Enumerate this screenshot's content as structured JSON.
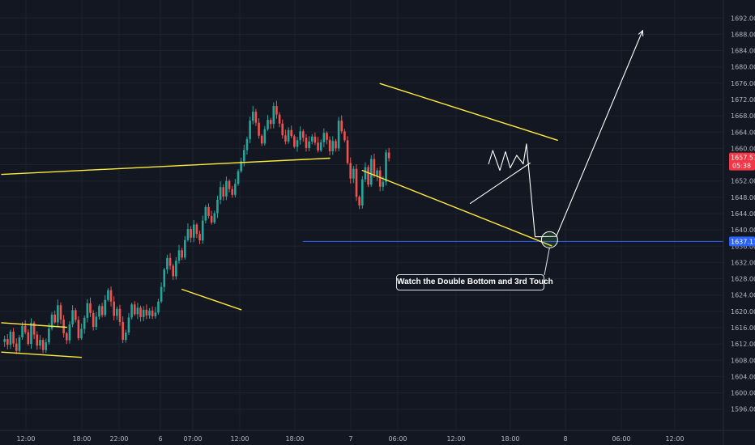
{
  "chart_data": {
    "type": "candlestick",
    "ylim": [
      1593,
      1694
    ],
    "y_ticks": [
      "1692.000",
      "1688.000",
      "1684.000",
      "1680.000",
      "1676.000",
      "1672.000",
      "1668.000",
      "1664.000",
      "1660.000",
      "1656.000",
      "1652.000",
      "1648.000",
      "1644.000",
      "1640.000",
      "1636.000",
      "1632.000",
      "1628.000",
      "1624.000",
      "1620.000",
      "1616.000",
      "1612.000",
      "1608.000",
      "1604.000",
      "1600.000",
      "1596.000"
    ],
    "x_ticks": [
      "12:00",
      "18:00",
      "22:00",
      "6",
      "07:00",
      "12:00",
      "18:00",
      "7",
      "06:00",
      "12:00",
      "18:00",
      "8",
      "06:00",
      "12:00"
    ],
    "price_badge": {
      "value": "1657.577",
      "countdown": "05:38",
      "color": "#f23645"
    },
    "level_badge": {
      "value": "1637.172",
      "color": "#2962ff"
    },
    "horizontal_level": 1637.172,
    "annotation": "Watch the Double Bottom and 3rd Touch",
    "colors": {
      "up": "#26a69a",
      "down": "#ef5350",
      "trendline": "#ffeb3b",
      "projection": "#ffffff",
      "level": "#2962ff"
    },
    "ohlc_path": [
      1612.5,
      1613.2,
      1611.8,
      1615.0,
      1612.1,
      1610.3,
      1613.6,
      1616.4,
      1614.9,
      1612.0,
      1617.2,
      1614.3,
      1611.6,
      1613.0,
      1610.5,
      1612.4,
      1615.8,
      1619.2,
      1617.3,
      1621.5,
      1618.0,
      1614.6,
      1612.9,
      1616.8,
      1620.3,
      1617.9,
      1613.4,
      1615.7,
      1618.4,
      1622.0,
      1619.6,
      1616.2,
      1618.7,
      1621.3,
      1619.1,
      1622.8,
      1625.2,
      1622.4,
      1618.9,
      1620.6,
      1617.4,
      1613.0,
      1614.8,
      1618.5,
      1621.7,
      1619.3,
      1620.9,
      1618.6,
      1620.4,
      1619.0,
      1620.2,
      1618.8,
      1619.7,
      1622.4,
      1626.0,
      1630.3,
      1633.1,
      1631.2,
      1628.6,
      1632.4,
      1635.0,
      1633.2,
      1637.5,
      1640.2,
      1638.1,
      1641.3,
      1639.0,
      1637.4,
      1642.3,
      1645.6,
      1643.4,
      1641.8,
      1644.1,
      1647.4,
      1650.5,
      1648.2,
      1652.0,
      1650.0,
      1648.6,
      1651.3,
      1654.4,
      1656.8,
      1659.6,
      1662.3,
      1666.8,
      1669.0,
      1666.3,
      1663.1,
      1661.2,
      1664.7,
      1667.0,
      1666.0,
      1670.4,
      1668.3,
      1666.1,
      1663.2,
      1661.7,
      1664.5,
      1663.0,
      1660.4,
      1662.0,
      1664.2,
      1662.6,
      1660.1,
      1661.7,
      1662.9,
      1661.4,
      1659.5,
      1661.5,
      1663.8,
      1662.1,
      1659.3,
      1661.8,
      1660.0,
      1666.8,
      1664.2,
      1662.0,
      1656.4,
      1652.6,
      1655.0,
      1648.1,
      1646.0,
      1652.4,
      1655.4,
      1651.1,
      1657.4,
      1653.2,
      1654.6,
      1650.6,
      1651.8,
      1659.0,
      1657.6
    ],
    "series": [
      {
        "type": "trendline",
        "points": [
          [
            0,
            1653.6
          ],
          [
            111,
            1657.6
          ]
        ]
      },
      {
        "type": "trendline",
        "points": [
          [
            0,
            1617.2
          ],
          [
            22,
            1616.1
          ]
        ]
      },
      {
        "type": "trendline",
        "points": [
          [
            0,
            1610.0
          ],
          [
            27,
            1608.7
          ]
        ]
      },
      {
        "type": "trendline",
        "points": [
          [
            61,
            1625.4
          ],
          [
            81,
            1620.4
          ]
        ]
      },
      {
        "type": "trendline",
        "points": [
          [
            128,
            1675.9
          ],
          [
            188,
            1662.0
          ]
        ]
      },
      {
        "type": "trendline",
        "points": [
          [
            122,
            1654.6
          ],
          [
            186,
            1636.1
          ]
        ]
      },
      {
        "type": "projection",
        "points": [
          [
            158.5,
            1646.5
          ],
          [
            178.7,
            1656.4
          ]
        ]
      },
      {
        "type": "projection",
        "points": [
          [
            164.7,
            1656.2
          ],
          [
            166.1,
            1659.5
          ],
          [
            168.5,
            1654.6
          ],
          [
            170.4,
            1659.2
          ],
          [
            172.0,
            1655.2
          ],
          [
            174.2,
            1658.3
          ],
          [
            176.4,
            1656.2
          ],
          [
            177.5,
            1661.1
          ],
          [
            180.4,
            1638.3
          ],
          [
            187.6,
            1638.4
          ],
          [
            216.8,
            1688.9
          ]
        ]
      }
    ]
  }
}
